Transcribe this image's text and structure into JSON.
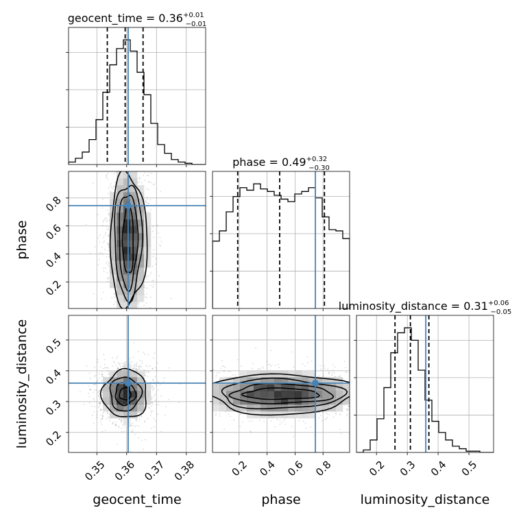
{
  "chart_data": {
    "type": "corner",
    "parameters": [
      "geocent_time",
      "phase",
      "luminosity_distance"
    ],
    "truths": {
      "geocent_time": 0.3605,
      "phase": 0.745,
      "luminosity_distance": 0.36
    },
    "ranges": {
      "geocent_time": [
        0.3405,
        0.3865
      ],
      "phase": [
        0.01,
        0.99
      ],
      "luminosity_distance": [
        0.135,
        0.58
      ]
    },
    "ticks": {
      "geocent_time": {
        "values": [
          0.35,
          0.36,
          0.37,
          0.38
        ],
        "labels": [
          "0.35",
          "0.36",
          "0.37",
          "0.38"
        ]
      },
      "phase": {
        "values": [
          0.2,
          0.4,
          0.6,
          0.8
        ],
        "labels": [
          "0.2",
          "0.4",
          "0.6",
          "0.8"
        ]
      },
      "luminosity_distance": {
        "values": [
          0.2,
          0.3,
          0.4,
          0.5
        ],
        "labels": [
          "0.2",
          "0.3",
          "0.4",
          "0.5"
        ]
      }
    },
    "titles": {
      "geocent_time": {
        "text": "geocent_time = 0.36",
        "plus": "+0.01",
        "minus": "−0.01"
      },
      "phase": {
        "text": "phase = 0.49",
        "plus": "+0.32",
        "minus": "−0.30"
      },
      "luminosity_distance": {
        "text": "luminosity_distance = 0.31",
        "plus": "+0.06",
        "minus": "−0.05"
      }
    },
    "quantiles": {
      "geocent_time": [
        0.3535,
        0.3595,
        0.3655
      ],
      "phase": [
        0.19,
        0.49,
        0.81
      ],
      "luminosity_distance": [
        0.26,
        0.31,
        0.37
      ]
    },
    "histograms": {
      "geocent_time": {
        "edges": [
          0.3405,
          0.3428,
          0.3451,
          0.3474,
          0.3497,
          0.352,
          0.3543,
          0.3566,
          0.3589,
          0.3612,
          0.3635,
          0.3658,
          0.3681,
          0.3704,
          0.3727,
          0.375,
          0.3773,
          0.3796,
          0.3819,
          0.3842,
          0.3865
        ],
        "counts": [
          2,
          5,
          10,
          20,
          36,
          58,
          80,
          93,
          100,
          91,
          74,
          56,
          33,
          16,
          9,
          4,
          2,
          1,
          0,
          0
        ]
      },
      "phase": {
        "edges": [
          0.01,
          0.059,
          0.108,
          0.157,
          0.206,
          0.255,
          0.304,
          0.353,
          0.402,
          0.451,
          0.5,
          0.549,
          0.598,
          0.647,
          0.696,
          0.745,
          0.794,
          0.843,
          0.892,
          0.941,
          0.99
        ],
        "counts": [
          53,
          61,
          76,
          88,
          95,
          93,
          98,
          94,
          92,
          89,
          86,
          84,
          90,
          92,
          95,
          87,
          72,
          62,
          61,
          55
        ]
      },
      "luminosity_distance": {
        "edges": [
          0.135,
          0.15725,
          0.1795,
          0.20175,
          0.224,
          0.24625,
          0.2685,
          0.29075,
          0.313,
          0.33525,
          0.3575,
          0.37975,
          0.402,
          0.42425,
          0.4465,
          0.46875,
          0.491,
          0.51325,
          0.5355,
          0.55775,
          0.58
        ],
        "counts": [
          0,
          2,
          10,
          27,
          52,
          80,
          96,
          100,
          90,
          66,
          42,
          25,
          16,
          10,
          5,
          3,
          1,
          1,
          0,
          0
        ]
      }
    },
    "density_2d": [
      {
        "x": "geocent_time",
        "y": "phase",
        "center": [
          0.3605,
          0.5
        ],
        "contour_halfwidths_x": [
          0.0018,
          0.0031,
          0.0046,
          0.0062
        ],
        "contour_halfwidths_y": [
          0.25,
          0.34,
          0.41,
          0.47
        ]
      },
      {
        "x": "geocent_time",
        "y": "luminosity_distance",
        "center": [
          0.3595,
          0.325
        ],
        "contour_halfwidths_x": [
          0.0019,
          0.0034,
          0.0052,
          0.0075
        ],
        "contour_halfwidths_y": [
          0.02,
          0.036,
          0.055,
          0.078
        ]
      },
      {
        "x": "phase",
        "y": "luminosity_distance",
        "center": [
          0.5,
          0.325
        ],
        "contour_halfwidths_x": [
          0.27,
          0.36,
          0.44,
          0.52
        ],
        "contour_halfwidths_y": [
          0.018,
          0.032,
          0.048,
          0.066
        ]
      }
    ]
  }
}
